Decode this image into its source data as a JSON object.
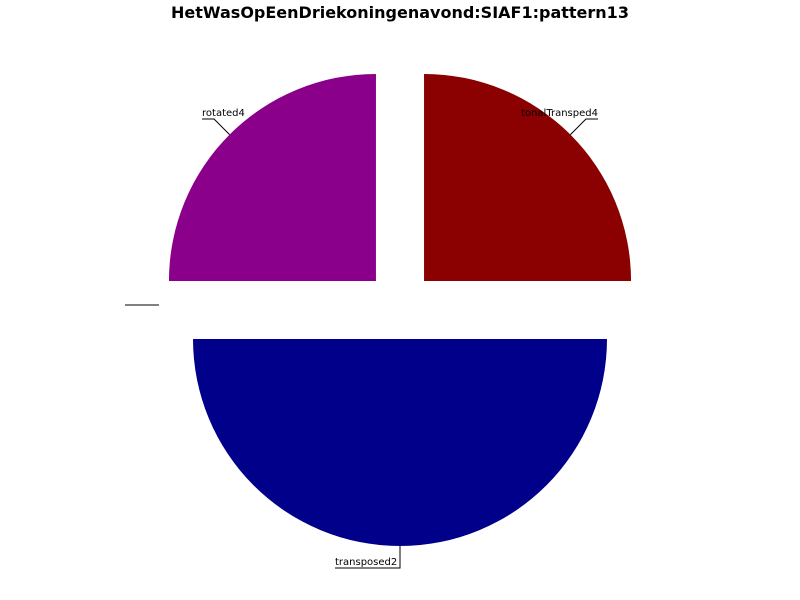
{
  "chart_data": {
    "type": "pie",
    "title": "HetWasOpEenDriekoningenavond:SIAF1:pattern13",
    "slices": [
      {
        "label": "transposed2",
        "value": 2,
        "color": "#00008b"
      },
      {
        "label": "tonalTransped4",
        "value": 1,
        "color": "#8b0000"
      },
      {
        "label": "rotated4",
        "value": 1,
        "color": "#8b008b"
      },
      {
        "label": "",
        "value": 0,
        "color": "#000000"
      },
      {
        "label": "",
        "value": 0,
        "color": "#000000"
      },
      {
        "label": "",
        "value": 0,
        "color": "#000000"
      }
    ],
    "legend": false
  }
}
